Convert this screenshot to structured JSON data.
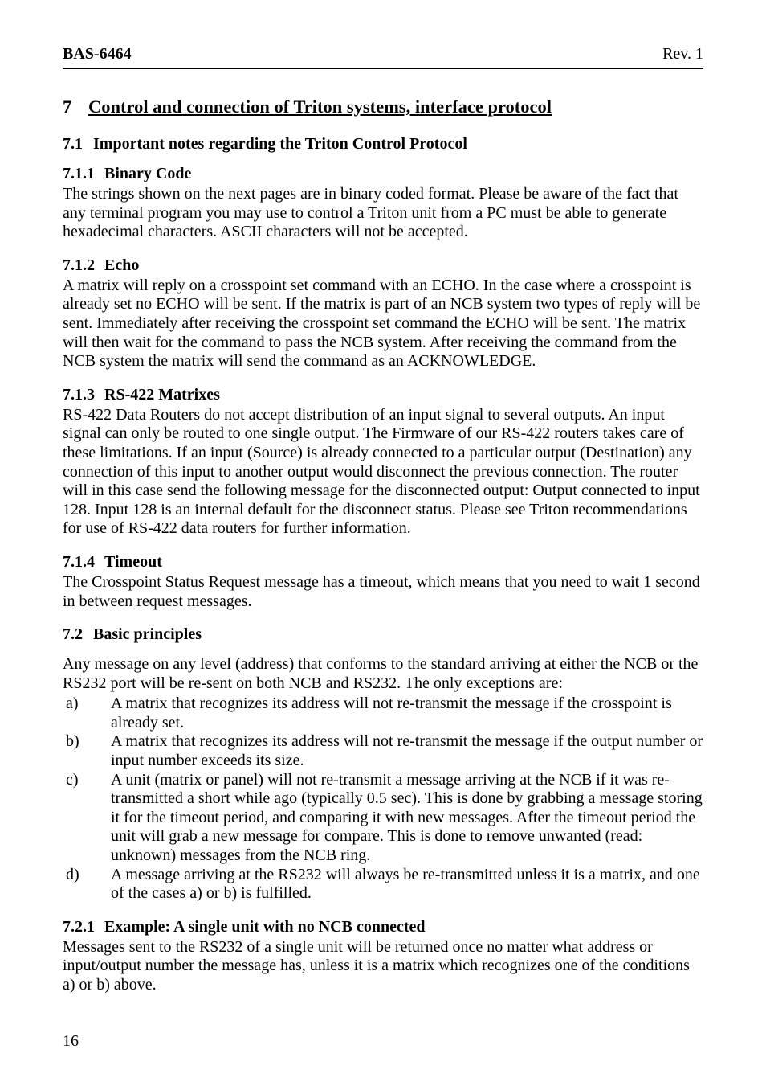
{
  "header": {
    "left": "BAS-6464",
    "right": "Rev. 1"
  },
  "footer": {
    "page_number": "16"
  },
  "h1": {
    "num": "7",
    "title": "Control and connection of Triton systems, interface protocol"
  },
  "s71": {
    "num": "7.1",
    "title": "Important notes regarding the Triton Control Protocol"
  },
  "s711": {
    "num": "7.1.1",
    "title": "Binary Code",
    "body": "The strings shown on the next pages are in binary coded format. Please be aware of the fact that any terminal program you may use to control a Triton unit from a PC must be able to generate hexadecimal characters. ASCII characters will not be accepted."
  },
  "s712": {
    "num": "7.1.2",
    "title": "Echo",
    "body": "A matrix will reply on a crosspoint set command with an ECHO. In the case where a crosspoint is already set no ECHO will be sent. If the matrix is part of an NCB system two types of reply will be sent. Immediately after receiving the crosspoint set command the ECHO will be sent. The matrix will then wait for the command to pass the NCB system. After receiving the command from the NCB system the matrix will send the command as an ACKNOWLEDGE."
  },
  "s713": {
    "num": "7.1.3",
    "title": "RS-422 Matrixes",
    "body": "RS-422 Data Routers do not accept distribution of an input signal to several outputs. An input signal can only be routed to one single output. The Firmware of our RS-422 routers takes care of these limitations. If an input (Source) is already connected to a particular output (Destination) any connection of this input to another output would disconnect the previous connection. The router will in this case send the following message for the disconnected output: Output connected to input 128. Input 128 is an internal default for the disconnect status. Please see Triton recommendations for use of RS-422 data routers for further information."
  },
  "s714": {
    "num": "7.1.4",
    "title": "Timeout",
    "body": "The Crosspoint Status Request message has a timeout, which means that you need to wait 1 second in between request messages."
  },
  "s72": {
    "num": "7.2",
    "title": "Basic principles",
    "intro": "Any message on any level (address) that conforms to the standard arriving at either the NCB or the RS232 port will be re-sent on both NCB and RS232. The only exceptions are:",
    "items": {
      "a": {
        "letter": "a)",
        "text": "A matrix that recognizes its address will not re-transmit the message if the crosspoint is already set."
      },
      "b": {
        "letter": "b)",
        "text": "A matrix that recognizes its address will not re-transmit the message if the output number or input number exceeds its size."
      },
      "c": {
        "letter": "c)",
        "text": "A unit (matrix or panel) will not re-transmit a message arriving at the NCB if it was re-transmitted a short while ago (typically 0.5 sec). This is done by grabbing a message storing it for the timeout period, and comparing it with new messages. After the timeout period the unit will grab a new message for compare. This is done to remove unwanted (read: unknown) messages from the NCB ring."
      },
      "d": {
        "letter": "d)",
        "text": "A message arriving at the RS232 will always be re-transmitted unless it is a matrix, and one of the cases a) or b) is fulfilled."
      }
    }
  },
  "s721": {
    "num": "7.2.1",
    "title": "Example: A single unit with no NCB connected",
    "body": "Messages sent to the RS232 of a single unit will be returned once no matter what address or input/output number the message has, unless it is a matrix which recognizes one of the conditions a) or b) above."
  }
}
